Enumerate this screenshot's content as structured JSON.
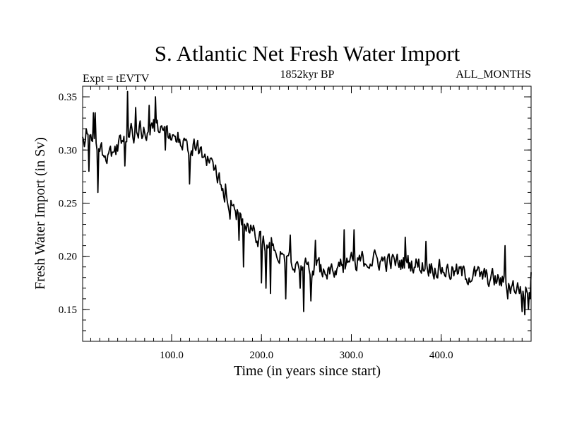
{
  "chart_data": {
    "type": "line",
    "title": "S. Atlantic Net Fresh Water Import",
    "subtitle_left": "Expt = tEVTV",
    "subtitle_center": "1852kyr BP",
    "subtitle_right": "ALL_MONTHS",
    "xlabel": "Time (in years since start)",
    "ylabel": "Fresh Water Import (in Sv)",
    "xlim": [
      1,
      500
    ],
    "ylim": [
      0.12,
      0.36
    ],
    "x_ticks": [
      100,
      200,
      300,
      400
    ],
    "x_tick_labels": [
      "100.0",
      "200.0",
      "300.0",
      "400.0"
    ],
    "y_ticks": [
      0.15,
      0.2,
      0.25,
      0.3,
      0.35
    ],
    "y_tick_labels": [
      "0.15",
      "0.20",
      "0.25",
      "0.30",
      "0.35"
    ],
    "line_color": "#000000",
    "trend_anchors": [
      [
        1,
        0.305
      ],
      [
        10,
        0.31
      ],
      [
        20,
        0.3
      ],
      [
        30,
        0.296
      ],
      [
        40,
        0.302
      ],
      [
        50,
        0.31
      ],
      [
        60,
        0.315
      ],
      [
        70,
        0.32
      ],
      [
        80,
        0.322
      ],
      [
        90,
        0.32
      ],
      [
        100,
        0.315
      ],
      [
        110,
        0.31
      ],
      [
        120,
        0.305
      ],
      [
        130,
        0.3
      ],
      [
        140,
        0.292
      ],
      [
        150,
        0.28
      ],
      [
        160,
        0.26
      ],
      [
        170,
        0.245
      ],
      [
        180,
        0.232
      ],
      [
        190,
        0.222
      ],
      [
        200,
        0.215
      ],
      [
        210,
        0.21
      ],
      [
        220,
        0.205
      ],
      [
        230,
        0.2
      ],
      [
        240,
        0.195
      ],
      [
        250,
        0.19
      ],
      [
        260,
        0.188
      ],
      [
        270,
        0.188
      ],
      [
        280,
        0.19
      ],
      [
        290,
        0.192
      ],
      [
        300,
        0.194
      ],
      [
        310,
        0.196
      ],
      [
        320,
        0.197
      ],
      [
        330,
        0.196
      ],
      [
        340,
        0.195
      ],
      [
        350,
        0.194
      ],
      [
        360,
        0.194
      ],
      [
        370,
        0.193
      ],
      [
        380,
        0.191
      ],
      [
        390,
        0.19
      ],
      [
        400,
        0.188
      ],
      [
        410,
        0.186
      ],
      [
        420,
        0.184
      ],
      [
        430,
        0.183
      ],
      [
        440,
        0.182
      ],
      [
        450,
        0.18
      ],
      [
        460,
        0.178
      ],
      [
        470,
        0.175
      ],
      [
        480,
        0.172
      ],
      [
        490,
        0.168
      ],
      [
        500,
        0.165
      ]
    ],
    "noise_amplitude": 0.011,
    "spikes": [
      [
        5,
        0.32
      ],
      [
        8,
        0.28
      ],
      [
        13,
        0.335
      ],
      [
        15,
        0.335
      ],
      [
        17,
        0.3
      ],
      [
        18,
        0.26
      ],
      [
        48,
        0.285
      ],
      [
        51,
        0.355
      ],
      [
        55,
        0.325
      ],
      [
        60,
        0.34
      ],
      [
        75,
        0.342
      ],
      [
        82,
        0.35
      ],
      [
        93,
        0.3
      ],
      [
        120,
        0.268
      ],
      [
        160,
        0.268
      ],
      [
        165,
        0.235
      ],
      [
        175,
        0.215
      ],
      [
        180,
        0.19
      ],
      [
        200,
        0.175
      ],
      [
        205,
        0.17
      ],
      [
        210,
        0.165
      ],
      [
        227,
        0.16
      ],
      [
        232,
        0.22
      ],
      [
        243,
        0.17
      ],
      [
        247,
        0.148
      ],
      [
        255,
        0.158
      ],
      [
        260,
        0.215
      ],
      [
        292,
        0.225
      ],
      [
        303,
        0.225
      ],
      [
        360,
        0.218
      ],
      [
        383,
        0.214
      ],
      [
        471,
        0.21
      ],
      [
        474,
        0.16
      ],
      [
        490,
        0.148
      ],
      [
        493,
        0.145
      ],
      [
        497,
        0.15
      ],
      [
        500,
        0.185
      ]
    ]
  }
}
